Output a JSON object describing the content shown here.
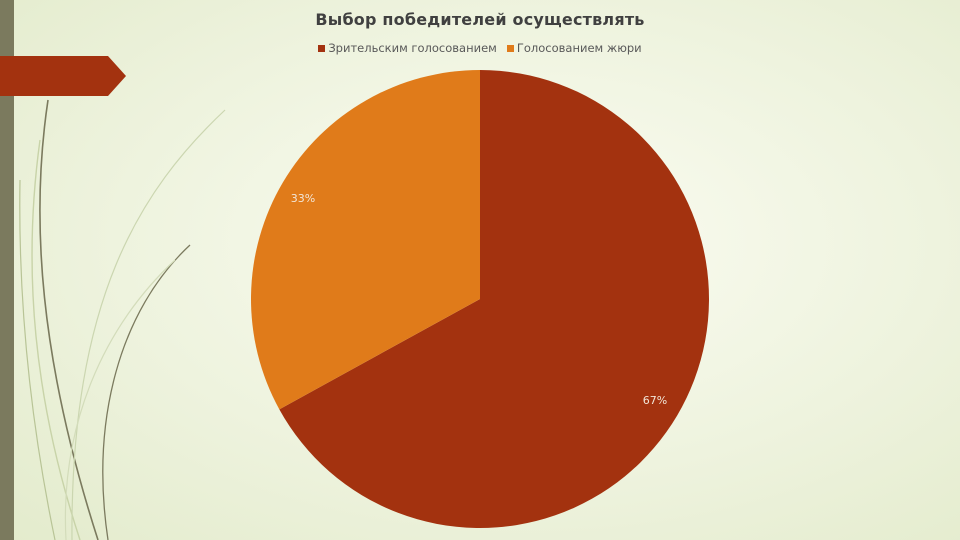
{
  "chart_data": {
    "type": "pie",
    "title": "Выбор победителей осуществлять",
    "legend_position": "top",
    "categories": [
      "Зрительским голосованием",
      "Голосованием жюри"
    ],
    "values": [
      67,
      33
    ],
    "labels": [
      "67%",
      "33%"
    ],
    "colors": [
      "#a3320f",
      "#e07b1a"
    ]
  },
  "theme": {
    "sidebar_color": "#7b7a5e",
    "accent_color": "#a3320f"
  }
}
